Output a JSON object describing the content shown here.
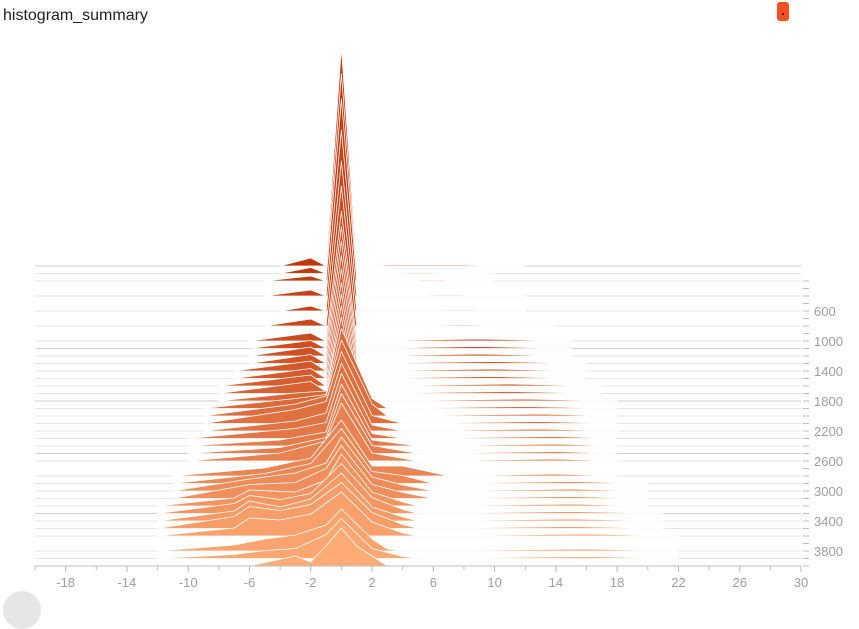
{
  "header": {
    "title": "histogram_summary"
  },
  "chart_data": {
    "type": "area",
    "title": "histogram_summary",
    "xlabel": "",
    "ylabel": "",
    "mode": "offset",
    "xlim": [
      -20,
      30
    ],
    "step_range": [
      0,
      4000
    ],
    "x_ticks": [
      -18,
      -14,
      -10,
      -6,
      -2,
      2,
      6,
      10,
      14,
      18,
      22,
      26,
      30
    ],
    "y_ticks": [
      600,
      1000,
      1400,
      1800,
      2200,
      2600,
      3000,
      3400,
      3800
    ],
    "x_tick_labels": [
      "-18",
      "-14",
      "-10",
      "-6",
      "-2",
      "2",
      "6",
      "10",
      "14",
      "18",
      "22",
      "26",
      "30"
    ],
    "y_tick_labels": [
      "600",
      "1000",
      "1400",
      "1800",
      "2200",
      "2600",
      "3000",
      "3400",
      "3800"
    ],
    "color_oldest": "#bf360c",
    "color_newest": "#ffab76",
    "series": [
      {
        "step": 0,
        "points": [
          [
            -4,
            0
          ],
          [
            -2,
            8
          ],
          [
            -1,
            0
          ],
          [
            0,
            218
          ],
          [
            1,
            0
          ],
          [
            3,
            1
          ],
          [
            8,
            1
          ],
          [
            12,
            0
          ]
        ]
      },
      {
        "step": 100,
        "points": [
          [
            -4,
            0
          ],
          [
            -2,
            6
          ],
          [
            -1,
            0
          ],
          [
            0,
            200
          ],
          [
            1,
            0
          ],
          [
            5,
            1
          ],
          [
            10,
            0
          ]
        ]
      },
      {
        "step": 200,
        "points": [
          [
            -5,
            0
          ],
          [
            -2,
            5
          ],
          [
            -1,
            0
          ],
          [
            0,
            182
          ],
          [
            1,
            0
          ],
          [
            6,
            1
          ],
          [
            10,
            0
          ]
        ]
      },
      {
        "step": 400,
        "points": [
          [
            -5,
            0
          ],
          [
            -2,
            6
          ],
          [
            -1,
            0
          ],
          [
            0,
            166
          ],
          [
            1,
            0
          ],
          [
            7,
            1
          ],
          [
            12,
            0
          ]
        ]
      },
      {
        "step": 600,
        "points": [
          [
            -4,
            0
          ],
          [
            -2,
            5
          ],
          [
            -1,
            0
          ],
          [
            0,
            150
          ],
          [
            1,
            0
          ],
          [
            8,
            1
          ],
          [
            12,
            0
          ]
        ]
      },
      {
        "step": 800,
        "points": [
          [
            -5,
            0
          ],
          [
            -2,
            7
          ],
          [
            -1,
            0
          ],
          [
            0,
            140
          ],
          [
            1,
            0
          ],
          [
            8,
            1
          ],
          [
            14,
            0
          ]
        ]
      },
      {
        "step": 1000,
        "points": [
          [
            -6,
            0
          ],
          [
            -2,
            8
          ],
          [
            -1,
            0
          ],
          [
            0,
            130
          ],
          [
            1,
            0
          ],
          [
            9,
            2
          ],
          [
            15,
            0
          ]
        ]
      },
      {
        "step": 1100,
        "points": [
          [
            -6,
            0
          ],
          [
            -2,
            8
          ],
          [
            -1,
            0
          ],
          [
            0,
            122
          ],
          [
            1,
            0
          ],
          [
            9,
            2
          ],
          [
            15,
            0
          ]
        ]
      },
      {
        "step": 1200,
        "points": [
          [
            -6,
            0
          ],
          [
            -2,
            9
          ],
          [
            -1,
            0
          ],
          [
            0,
            115
          ],
          [
            1,
            0
          ],
          [
            9,
            2
          ],
          [
            15,
            0
          ]
        ]
      },
      {
        "step": 1300,
        "points": [
          [
            -6,
            0
          ],
          [
            -2,
            9
          ],
          [
            -1,
            0
          ],
          [
            0,
            108
          ],
          [
            1,
            0
          ],
          [
            10,
            2
          ],
          [
            16,
            0
          ]
        ]
      },
      {
        "step": 1400,
        "points": [
          [
            -7,
            0
          ],
          [
            -2,
            10
          ],
          [
            -1,
            0
          ],
          [
            0,
            102
          ],
          [
            1,
            0
          ],
          [
            10,
            2
          ],
          [
            16,
            0
          ]
        ]
      },
      {
        "step": 1500,
        "points": [
          [
            -7,
            0
          ],
          [
            -2,
            10
          ],
          [
            -1,
            0
          ],
          [
            0,
            96
          ],
          [
            1,
            0
          ],
          [
            10,
            2
          ],
          [
            16,
            0
          ]
        ]
      },
      {
        "step": 1600,
        "points": [
          [
            -8,
            0
          ],
          [
            -2,
            11
          ],
          [
            -1,
            0
          ],
          [
            0,
            92
          ],
          [
            1,
            0
          ],
          [
            11,
            2
          ],
          [
            17,
            0
          ]
        ]
      },
      {
        "step": 1700,
        "points": [
          [
            -8,
            0
          ],
          [
            -2,
            12
          ],
          [
            -1,
            2
          ],
          [
            0,
            88
          ],
          [
            1,
            0
          ],
          [
            11,
            2
          ],
          [
            17,
            0
          ]
        ]
      },
      {
        "step": 1800,
        "points": [
          [
            -8,
            0
          ],
          [
            -3,
            8
          ],
          [
            -1,
            10
          ],
          [
            0,
            84
          ],
          [
            1,
            5
          ],
          [
            2,
            0
          ],
          [
            12,
            2
          ],
          [
            18,
            0
          ]
        ]
      },
      {
        "step": 1900,
        "points": [
          [
            -9,
            0
          ],
          [
            -3,
            10
          ],
          [
            -1,
            14
          ],
          [
            0,
            80
          ],
          [
            2,
            10
          ],
          [
            3,
            0
          ],
          [
            12,
            2
          ],
          [
            18,
            0
          ]
        ]
      },
      {
        "step": 2000,
        "points": [
          [
            -9,
            0
          ],
          [
            -3,
            12
          ],
          [
            -1,
            20
          ],
          [
            0,
            76
          ],
          [
            2,
            12
          ],
          [
            3,
            0
          ],
          [
            13,
            2
          ],
          [
            18,
            0
          ]
        ]
      },
      {
        "step": 2100,
        "points": [
          [
            -9,
            0
          ],
          [
            -3,
            14
          ],
          [
            -1,
            22
          ],
          [
            0,
            72
          ],
          [
            2,
            8
          ],
          [
            4,
            0
          ],
          [
            13,
            2
          ],
          [
            18,
            0
          ]
        ]
      },
      {
        "step": 2200,
        "points": [
          [
            -9,
            0
          ],
          [
            -3,
            10
          ],
          [
            -1,
            18
          ],
          [
            0,
            68
          ],
          [
            2,
            6
          ],
          [
            4,
            0
          ],
          [
            13,
            2
          ],
          [
            18,
            0
          ]
        ]
      },
      {
        "step": 2300,
        "points": [
          [
            -10,
            0
          ],
          [
            -3,
            10
          ],
          [
            -1,
            16
          ],
          [
            0,
            65
          ],
          [
            2,
            5
          ],
          [
            4,
            0
          ],
          [
            14,
            2
          ],
          [
            18,
            0
          ]
        ]
      },
      {
        "step": 2400,
        "points": [
          [
            -10,
            0
          ],
          [
            -4,
            6
          ],
          [
            -1,
            14
          ],
          [
            0,
            62
          ],
          [
            2,
            6
          ],
          [
            5,
            0
          ],
          [
            14,
            2
          ],
          [
            18,
            0
          ]
        ]
      },
      {
        "step": 2500,
        "points": [
          [
            -10,
            0
          ],
          [
            -4,
            6
          ],
          [
            -1,
            16
          ],
          [
            0,
            60
          ],
          [
            2,
            8
          ],
          [
            5,
            0
          ],
          [
            14,
            2
          ],
          [
            18,
            0
          ]
        ]
      },
      {
        "step": 2600,
        "points": [
          [
            -10,
            0
          ],
          [
            -4,
            8
          ],
          [
            -1,
            20
          ],
          [
            0,
            58
          ],
          [
            2,
            8
          ],
          [
            5,
            0
          ],
          [
            14,
            2
          ],
          [
            18,
            0
          ]
        ]
      },
      {
        "step": 2800,
        "points": [
          [
            -11,
            0
          ],
          [
            -5,
            8
          ],
          [
            -2,
            18
          ],
          [
            0,
            56
          ],
          [
            2,
            10
          ],
          [
            4,
            10
          ],
          [
            7,
            0
          ],
          [
            14,
            2
          ],
          [
            18,
            0
          ]
        ]
      },
      {
        "step": 2900,
        "points": [
          [
            -11,
            0
          ],
          [
            -5,
            10
          ],
          [
            -2,
            20
          ],
          [
            0,
            55
          ],
          [
            2,
            12
          ],
          [
            4,
            8
          ],
          [
            6,
            0
          ],
          [
            15,
            2
          ],
          [
            20,
            0
          ]
        ]
      },
      {
        "step": 3000,
        "points": [
          [
            -11,
            0
          ],
          [
            -6,
            12
          ],
          [
            -3,
            18
          ],
          [
            -1,
            28
          ],
          [
            0,
            54
          ],
          [
            2,
            14
          ],
          [
            4,
            6
          ],
          [
            6,
            0
          ],
          [
            15,
            2
          ],
          [
            20,
            0
          ]
        ]
      },
      {
        "step": 3100,
        "points": [
          [
            -11,
            0
          ],
          [
            -6,
            14
          ],
          [
            -3,
            16
          ],
          [
            -1,
            30
          ],
          [
            0,
            53
          ],
          [
            2,
            14
          ],
          [
            4,
            6
          ],
          [
            6,
            0
          ],
          [
            15,
            2
          ],
          [
            20,
            0
          ]
        ]
      },
      {
        "step": 3200,
        "points": [
          [
            -12,
            0
          ],
          [
            -7,
            8
          ],
          [
            -6,
            16
          ],
          [
            -3,
            14
          ],
          [
            -1,
            26
          ],
          [
            0,
            52
          ],
          [
            2,
            14
          ],
          [
            4,
            4
          ],
          [
            5,
            0
          ],
          [
            15,
            2
          ],
          [
            20,
            0
          ]
        ]
      },
      {
        "step": 3300,
        "points": [
          [
            -12,
            0
          ],
          [
            -7,
            10
          ],
          [
            -6,
            18
          ],
          [
            -4,
            14
          ],
          [
            -2,
            20
          ],
          [
            0,
            50
          ],
          [
            2,
            16
          ],
          [
            4,
            4
          ],
          [
            5,
            0
          ],
          [
            15,
            2
          ],
          [
            21,
            0
          ]
        ]
      },
      {
        "step": 3400,
        "points": [
          [
            -12,
            0
          ],
          [
            -7,
            10
          ],
          [
            -6,
            20
          ],
          [
            -4,
            14
          ],
          [
            -2,
            22
          ],
          [
            0,
            48
          ],
          [
            2,
            14
          ],
          [
            4,
            4
          ],
          [
            5,
            0
          ],
          [
            15,
            2
          ],
          [
            21,
            0
          ]
        ]
      },
      {
        "step": 3500,
        "points": [
          [
            -12,
            0
          ],
          [
            -7,
            12
          ],
          [
            -6,
            22
          ],
          [
            -4,
            18
          ],
          [
            -2,
            24
          ],
          [
            0,
            46
          ],
          [
            2,
            16
          ],
          [
            4,
            4
          ],
          [
            5,
            0
          ],
          [
            15,
            2
          ],
          [
            21,
            0
          ]
        ]
      },
      {
        "step": 3600,
        "points": [
          [
            -12,
            0
          ],
          [
            -7,
            8
          ],
          [
            -6,
            18
          ],
          [
            -4,
            16
          ],
          [
            -2,
            22
          ],
          [
            0,
            44
          ],
          [
            2,
            14
          ],
          [
            4,
            3
          ],
          [
            5,
            0
          ],
          [
            16,
            2
          ],
          [
            22,
            0
          ]
        ]
      },
      {
        "step": 3800,
        "points": [
          [
            -12,
            0
          ],
          [
            -7,
            6
          ],
          [
            -5,
            12
          ],
          [
            -3,
            16
          ],
          [
            -1,
            26
          ],
          [
            0,
            42
          ],
          [
            2,
            12
          ],
          [
            3,
            2
          ],
          [
            4,
            0
          ],
          [
            16,
            2
          ],
          [
            22,
            0
          ]
        ]
      },
      {
        "step": 3900,
        "points": [
          [
            -12,
            0
          ],
          [
            -7,
            4
          ],
          [
            -5,
            8
          ],
          [
            -3,
            10
          ],
          [
            -1,
            24
          ],
          [
            0,
            40
          ],
          [
            2,
            10
          ],
          [
            4,
            2
          ],
          [
            5,
            0
          ],
          [
            16,
            2
          ],
          [
            22,
            0
          ]
        ]
      },
      {
        "step": 4000,
        "points": [
          [
            -6,
            0
          ],
          [
            -3,
            10
          ],
          [
            -2,
            4
          ],
          [
            -1,
            20
          ],
          [
            0,
            38
          ],
          [
            1,
            20
          ],
          [
            3,
            0
          ]
        ]
      }
    ]
  }
}
